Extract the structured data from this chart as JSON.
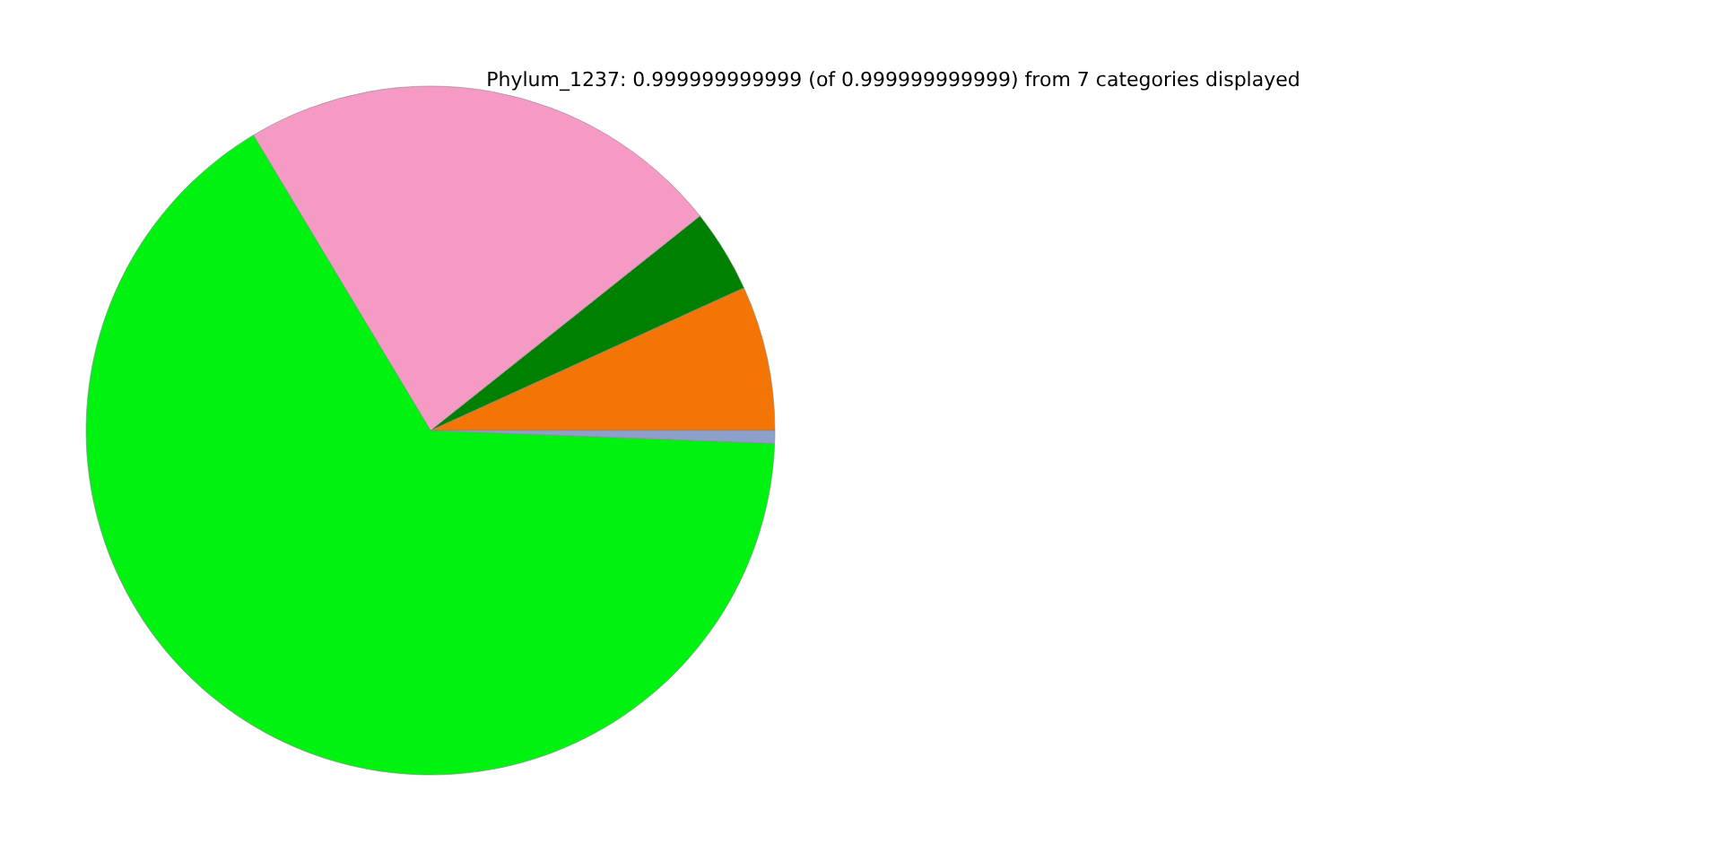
{
  "chart_data": {
    "type": "pie",
    "title": "Phylum_1237: 0.999999999999 (of 0.999999999999) from 7 categories displayed",
    "categories": [
      null,
      null,
      null,
      null,
      null
    ],
    "values": [
      6.8,
      3.9,
      22.9,
      65.8,
      0.6
    ],
    "colors": [
      "#f37506",
      "#008000",
      "#f49ac4",
      "#00f210",
      "#8da0cb"
    ]
  }
}
